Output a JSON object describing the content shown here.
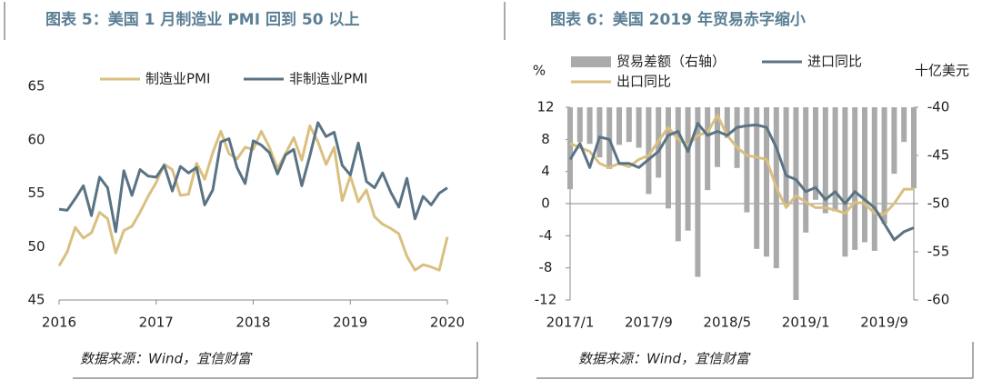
{
  "chart_data": [
    {
      "type": "line",
      "title": "图表 5：美国 1 月制造业 PMI 回到 50 以上",
      "source": "数据来源：Wind，宜信财富",
      "categories": [
        "2016",
        null,
        null,
        null,
        null,
        null,
        null,
        null,
        null,
        null,
        null,
        null,
        "2017",
        null,
        null,
        null,
        null,
        null,
        null,
        null,
        null,
        null,
        null,
        null,
        "2018",
        null,
        null,
        null,
        null,
        null,
        null,
        null,
        null,
        null,
        null,
        null,
        "2019",
        null,
        null,
        null,
        null,
        null,
        null,
        null,
        null,
        null,
        null,
        null,
        "2020"
      ],
      "series": [
        {
          "name": "制造业PMI",
          "color": "#d9bf80",
          "values": [
            48.2,
            49.5,
            51.8,
            50.8,
            51.3,
            53.2,
            52.6,
            49.4,
            51.5,
            51.9,
            53.2,
            54.7,
            56.0,
            57.7,
            57.2,
            54.8,
            54.9,
            57.8,
            56.3,
            58.8,
            60.8,
            58.7,
            58.2,
            59.3,
            59.1,
            60.8,
            59.3,
            57.3,
            58.7,
            60.2,
            58.1,
            61.3,
            59.8,
            57.7,
            59.3,
            54.3,
            56.6,
            54.2,
            55.3,
            52.8,
            52.1,
            51.7,
            51.2,
            49.1,
            47.8,
            48.3,
            48.1,
            47.8,
            50.9
          ]
        },
        {
          "name": "非制造业PMI",
          "color": "#5a7384",
          "values": [
            53.5,
            53.4,
            54.5,
            55.7,
            52.9,
            56.5,
            55.5,
            51.4,
            57.1,
            54.8,
            57.2,
            56.6,
            56.5,
            57.6,
            55.2,
            57.5,
            56.9,
            57.4,
            53.9,
            55.3,
            59.8,
            60.1,
            57.4,
            55.9,
            59.9,
            59.5,
            58.8,
            56.8,
            58.6,
            59.1,
            55.7,
            58.5,
            61.6,
            60.3,
            60.7,
            57.6,
            56.7,
            59.7,
            56.1,
            55.5,
            56.9,
            55.1,
            53.7,
            56.4,
            52.6,
            54.7,
            53.9,
            55.0,
            55.5
          ]
        }
      ],
      "ylim": [
        45,
        65
      ],
      "yticks": [
        45,
        50,
        55,
        60,
        65
      ],
      "grid": false,
      "legend": "top"
    },
    {
      "type": "combo",
      "title": "图表 6：美国 2019 年贸易赤字缩小",
      "source": "数据来源：Wind，宜信财富",
      "y_label": "%",
      "y2_label": "十亿美元",
      "categories": [
        "2017/1",
        null,
        null,
        null,
        null,
        null,
        null,
        null,
        "2017/9",
        null,
        null,
        null,
        null,
        null,
        null,
        null,
        "2018/5",
        null,
        null,
        null,
        null,
        null,
        null,
        null,
        "2019/1",
        null,
        null,
        null,
        null,
        null,
        null,
        null,
        "2019/9",
        null,
        null,
        null
      ],
      "series": [
        {
          "name": "贸易差额（右轴）",
          "type": "bar",
          "axis": "y2",
          "color": "#aaaaaa",
          "values": [
            -48.5,
            -43.6,
            -43.8,
            -45.2,
            -46.4,
            -43.9,
            -43.6,
            -44.2,
            -49.0,
            -47.3,
            -50.5,
            -53.9,
            -52.8,
            -57.6,
            -48.6,
            -46.2,
            -43.2,
            -46.3,
            -50.9,
            -54.7,
            -55.5,
            -56.7,
            -50.0,
            -60.0,
            -53.0,
            -49.6,
            -51.0,
            -50.8,
            -55.5,
            -54.8,
            -54.0,
            -54.9,
            -52.1,
            -46.9,
            -43.6,
            -48.4
          ]
        },
        {
          "name": "出口同比",
          "type": "line",
          "color": "#d9bf80",
          "values": [
            7.5,
            7.0,
            6.5,
            5.0,
            4.5,
            5.0,
            4.6,
            5.5,
            6.0,
            7.8,
            9.5,
            8.0,
            7.3,
            8.5,
            8.9,
            11.0,
            8.5,
            7.0,
            6.0,
            5.8,
            5.5,
            2.0,
            -0.5,
            1.0,
            0.2,
            -0.5,
            -0.5,
            -0.8,
            -1.2,
            0.2,
            0.0,
            -1.2,
            -1.3,
            0.0,
            1.8,
            1.8
          ]
        },
        {
          "name": "进口同比",
          "type": "line",
          "color": "#5a7384",
          "values": [
            5.5,
            7.5,
            4.5,
            8.3,
            8.0,
            5.0,
            5.0,
            4.5,
            5.5,
            6.5,
            8.5,
            9.0,
            6.5,
            10.0,
            8.5,
            9.0,
            8.5,
            9.5,
            9.7,
            9.8,
            9.5,
            7.0,
            3.5,
            3.0,
            1.5,
            2.0,
            0.5,
            1.5,
            0.0,
            1.5,
            0.5,
            -0.5,
            -2.5,
            -4.5,
            -3.5,
            -3.0
          ]
        }
      ],
      "ylim": [
        -12,
        12
      ],
      "yticks": [
        -12,
        -8,
        -4,
        0,
        4,
        8,
        12
      ],
      "y2lim": [
        -60,
        -40
      ],
      "y2ticks": [
        -60,
        -55,
        -50,
        -45,
        -40
      ],
      "grid": false,
      "legend": "top"
    }
  ]
}
